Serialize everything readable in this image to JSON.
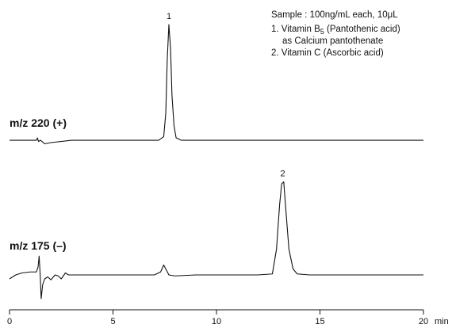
{
  "chart_data": {
    "type": "line",
    "x_unit": "min",
    "xlim": [
      0,
      20
    ],
    "x_ticks": [
      "0",
      "5",
      "10",
      "15",
      "20"
    ],
    "annotation": {
      "sample": "Sample : 100ng/mL each, 10μL",
      "compound1_line1_prefix": "1. Vitamin B",
      "compound1_subscript": "5",
      "compound1_line1_suffix": " (Pantothenic acid)",
      "compound1_line2": "as Calcium pantothenate",
      "compound2": "2. Vitamin C (Ascorbic acid)"
    },
    "series": [
      {
        "name": "m/z 220 (+)",
        "peaks": [
          {
            "label": "1",
            "rt": 7.7
          }
        ],
        "points": [
          [
            0.0,
            0.02
          ],
          [
            1.3,
            0.02
          ],
          [
            1.35,
            0.04
          ],
          [
            1.4,
            0.01
          ],
          [
            1.5,
            0.02
          ],
          [
            1.7,
            -0.01
          ],
          [
            2.0,
            0.0
          ],
          [
            3.0,
            0.02
          ],
          [
            5.0,
            0.02
          ],
          [
            7.2,
            0.02
          ],
          [
            7.45,
            0.05
          ],
          [
            7.55,
            0.25
          ],
          [
            7.62,
            0.7
          ],
          [
            7.7,
            1.0
          ],
          [
            7.78,
            0.8
          ],
          [
            7.85,
            0.4
          ],
          [
            7.95,
            0.14
          ],
          [
            8.05,
            0.04
          ],
          [
            8.3,
            0.02
          ],
          [
            10.0,
            0.02
          ],
          [
            15.0,
            0.02
          ],
          [
            20.0,
            0.02
          ]
        ]
      },
      {
        "name": "m/z 175 (–)",
        "peaks": [
          {
            "label": "2",
            "rt": 13.2
          }
        ],
        "points": [
          [
            0.0,
            0.0
          ],
          [
            0.3,
            0.04
          ],
          [
            0.6,
            0.06
          ],
          [
            1.0,
            0.07
          ],
          [
            1.3,
            0.07
          ],
          [
            1.38,
            0.12
          ],
          [
            1.43,
            0.23
          ],
          [
            1.48,
            0.05
          ],
          [
            1.53,
            -0.2
          ],
          [
            1.6,
            -0.06
          ],
          [
            1.7,
            0.0
          ],
          [
            1.85,
            0.02
          ],
          [
            2.0,
            -0.01
          ],
          [
            2.2,
            0.04
          ],
          [
            2.35,
            0.03
          ],
          [
            2.5,
            0.0
          ],
          [
            2.7,
            0.06
          ],
          [
            2.85,
            0.04
          ],
          [
            3.0,
            0.04
          ],
          [
            4.0,
            0.04
          ],
          [
            5.0,
            0.04
          ],
          [
            6.0,
            0.04
          ],
          [
            7.0,
            0.04
          ],
          [
            7.3,
            0.07
          ],
          [
            7.45,
            0.14
          ],
          [
            7.55,
            0.1
          ],
          [
            7.7,
            0.04
          ],
          [
            8.0,
            0.03
          ],
          [
            9.0,
            0.04
          ],
          [
            10.0,
            0.04
          ],
          [
            11.0,
            0.04
          ],
          [
            12.0,
            0.04
          ],
          [
            12.7,
            0.05
          ],
          [
            12.9,
            0.3
          ],
          [
            13.05,
            0.75
          ],
          [
            13.15,
            0.96
          ],
          [
            13.25,
            0.98
          ],
          [
            13.35,
            0.7
          ],
          [
            13.5,
            0.3
          ],
          [
            13.7,
            0.1
          ],
          [
            13.9,
            0.05
          ],
          [
            14.5,
            0.04
          ],
          [
            15.0,
            0.04
          ],
          [
            17.0,
            0.04
          ],
          [
            20.0,
            0.04
          ]
        ]
      }
    ]
  }
}
